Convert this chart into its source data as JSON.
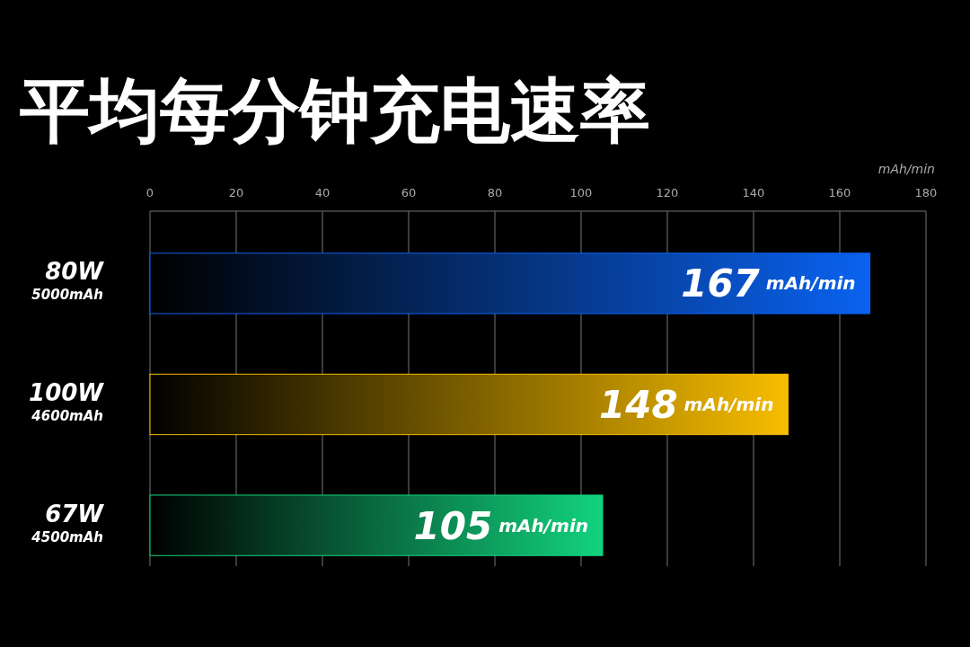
{
  "chart_data": {
    "type": "bar",
    "orientation": "horizontal",
    "title": "平均每分钟充电速率",
    "xlabel": "mAh/min",
    "categories": [
      "80W\n5000mAh",
      "100W\n4600mAh",
      "67W\n4500mAh"
    ],
    "values": [
      167,
      148,
      105
    ],
    "colors": [
      "#0a62f0",
      "#f7bd00",
      "#12d37e"
    ],
    "value_labels": [
      "167 mAh/min",
      "148 mAh/min",
      "105 mAh/min"
    ],
    "xlim": [
      0,
      180
    ],
    "xticks": [
      0,
      20,
      40,
      60,
      80,
      100,
      120,
      140,
      160,
      180
    ],
    "grid": "x"
  }
}
